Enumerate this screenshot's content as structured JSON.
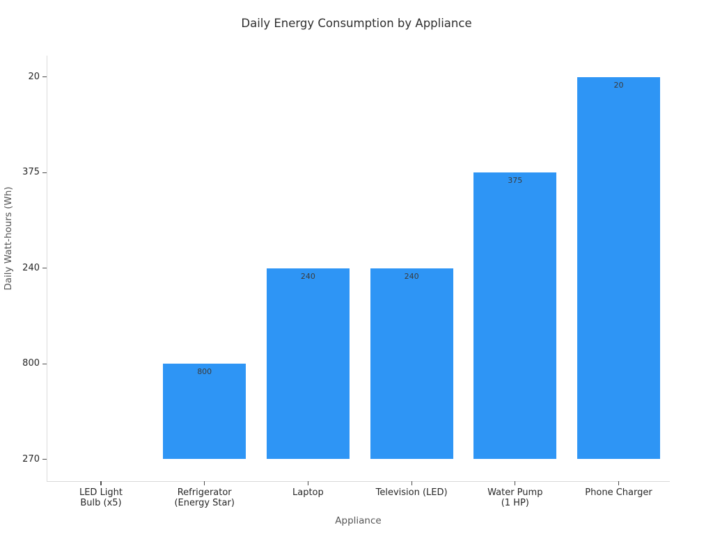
{
  "chart_data": {
    "type": "bar",
    "title": "Daily Energy Consumption by Appliance",
    "xlabel": "Appliance",
    "ylabel": "Daily Watt-hours (Wh)",
    "categories": [
      "LED Light Bulb (x5)",
      "Refrigerator (Energy Star)",
      "Laptop",
      "Television (LED)",
      "Water Pump (1 HP)",
      "Phone Charger"
    ],
    "x_tick_label_lines": [
      [
        "LED Light",
        "Bulb (x5)"
      ],
      [
        "Refrigerator",
        "(Energy Star)"
      ],
      [
        "Laptop"
      ],
      [
        "Television (LED)"
      ],
      [
        "Water Pump",
        "(1 HP)"
      ],
      [
        "Phone Charger"
      ]
    ],
    "values_wh": [
      270,
      800,
      240,
      240,
      375,
      20
    ],
    "bar_value_labels": [
      null,
      "800",
      "240",
      "240",
      "375",
      "20"
    ],
    "y_axis": {
      "type": "category",
      "tick_labels_bottom_to_top": [
        "270",
        "800",
        "240",
        "375",
        "20"
      ]
    },
    "bar_positions_in_category_units": [
      0,
      1,
      2,
      2,
      3,
      4
    ],
    "grid": false,
    "legend": false,
    "colors": {
      "bar": "#2E95F5",
      "tick_label": "#262626",
      "axis_label": "#555555",
      "title": "#2e2e2e",
      "bar_value_label": "#3a3a3a",
      "spine": "#d9d9d9",
      "tick_mark": "#4a4a4a",
      "background": "#ffffff"
    }
  }
}
